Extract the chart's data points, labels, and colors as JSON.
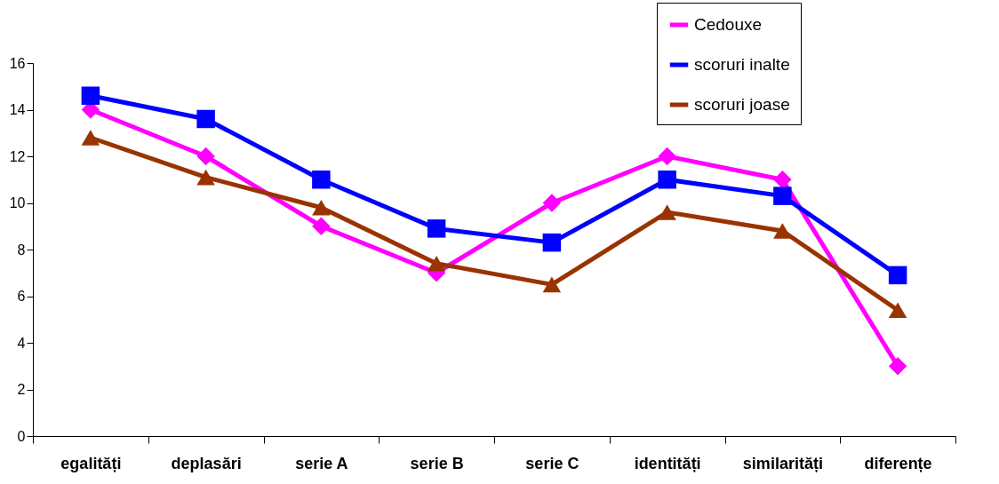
{
  "chart_data": {
    "type": "line",
    "categories": [
      "egalități",
      "deplasări",
      "serie A",
      "serie B",
      "serie C",
      "identități",
      "similarități",
      "diferențe"
    ],
    "series": [
      {
        "name": "Cedouxe",
        "color": "#ff00ff",
        "marker": "diamond",
        "values": [
          14,
          12,
          9,
          7,
          10,
          12,
          11,
          3
        ]
      },
      {
        "name": "scoruri inalte",
        "color": "#0000ff",
        "marker": "square",
        "values": [
          14.6,
          13.6,
          11.0,
          8.9,
          8.3,
          11.0,
          10.3,
          6.9
        ]
      },
      {
        "name": "scoruri joase",
        "color": "#993300",
        "marker": "triangle",
        "values": [
          12.8,
          11.1,
          9.8,
          7.4,
          6.5,
          9.6,
          8.8,
          5.4
        ]
      }
    ],
    "ylim": [
      0,
      16
    ],
    "yticks": [
      0,
      2,
      4,
      6,
      8,
      10,
      12,
      14,
      16
    ],
    "grid": false,
    "legend": "top right",
    "line_style": "solid"
  }
}
